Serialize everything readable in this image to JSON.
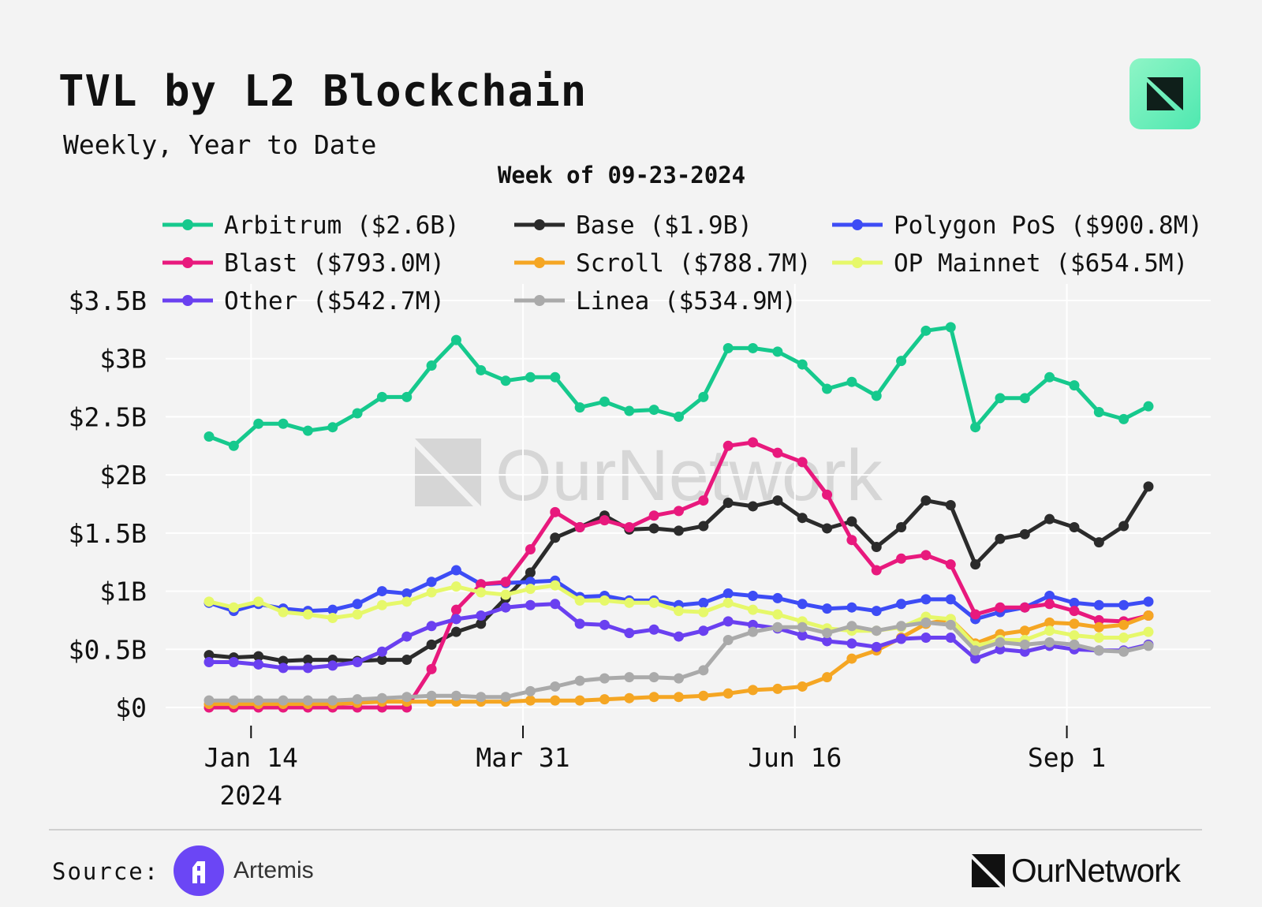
{
  "header": {
    "title": "TVL by L2 Blockchain",
    "subtitle": "Weekly, Year to Date"
  },
  "footer": {
    "source_label": "Source:",
    "source_name": "Artemis",
    "brand_name": "OurNetwork"
  },
  "colors": {
    "background": "#f3f3f3",
    "grid": "#ffffff",
    "text": "#111111"
  },
  "chart_data": {
    "type": "line",
    "title": "Week of 09-23-2024",
    "xlabel": "",
    "ylabel": "",
    "ylim": [
      0,
      3.5
    ],
    "yticks": [
      0,
      0.5,
      1,
      1.5,
      2,
      2.5,
      3,
      3.5
    ],
    "ytick_labels": [
      "$0",
      "$0.5B",
      "$1B",
      "$1.5B",
      "$2B",
      "$2.5B",
      "$3B",
      "$3.5B"
    ],
    "xticks": [
      1.7,
      12.7,
      23.7,
      34.7
    ],
    "xtick_labels": [
      "Jan 14",
      "Mar 31",
      "Jun 16",
      "Sep 1"
    ],
    "xtick_year": "2024",
    "watermark": "OurNetwork",
    "legend_position": "top",
    "x": [
      0,
      1,
      2,
      3,
      4,
      5,
      6,
      7,
      8,
      9,
      10,
      11,
      12,
      13,
      14,
      15,
      16,
      17,
      18,
      19,
      20,
      21,
      22,
      23,
      24,
      25,
      26,
      27,
      28,
      29,
      30,
      31,
      32,
      33,
      34,
      35,
      36,
      37,
      38
    ],
    "series": [
      {
        "name": "Arbitrum",
        "legend": "Arbitrum ($2.6B)",
        "color": "#16c98d",
        "values": [
          2.33,
          2.25,
          2.44,
          2.44,
          2.38,
          2.41,
          2.53,
          2.67,
          2.67,
          2.94,
          3.16,
          2.9,
          2.81,
          2.84,
          2.84,
          2.58,
          2.63,
          2.55,
          2.56,
          2.5,
          2.67,
          3.09,
          3.09,
          3.06,
          2.95,
          2.74,
          2.8,
          2.68,
          2.98,
          3.24,
          3.27,
          2.41,
          2.66,
          2.66,
          2.84,
          2.77,
          2.54,
          2.48,
          2.59
        ]
      },
      {
        "name": "Base",
        "legend": "Base ($1.9B)",
        "color": "#2b2b2b",
        "values": [
          0.45,
          0.43,
          0.44,
          0.4,
          0.41,
          0.41,
          0.4,
          0.41,
          0.41,
          0.54,
          0.65,
          0.72,
          0.94,
          1.16,
          1.46,
          1.55,
          1.65,
          1.53,
          1.54,
          1.52,
          1.56,
          1.76,
          1.73,
          1.78,
          1.63,
          1.54,
          1.6,
          1.38,
          1.55,
          1.78,
          1.74,
          1.23,
          1.45,
          1.49,
          1.62,
          1.55,
          1.42,
          1.56,
          1.9
        ]
      },
      {
        "name": "Polygon PoS",
        "legend": "Polygon PoS ($900.8M)",
        "color": "#3d4cf5",
        "values": [
          0.9,
          0.83,
          0.89,
          0.85,
          0.83,
          0.84,
          0.89,
          1.0,
          0.98,
          1.08,
          1.18,
          1.06,
          1.07,
          1.08,
          1.09,
          0.95,
          0.96,
          0.92,
          0.92,
          0.88,
          0.9,
          0.98,
          0.96,
          0.94,
          0.89,
          0.85,
          0.86,
          0.83,
          0.89,
          0.93,
          0.93,
          0.76,
          0.82,
          0.86,
          0.96,
          0.9,
          0.88,
          0.88,
          0.91
        ]
      },
      {
        "name": "Blast",
        "legend": "Blast ($793.0M)",
        "color": "#e8197d",
        "values": [
          0,
          0,
          0,
          0,
          0,
          0,
          0,
          0,
          0,
          0.33,
          0.84,
          1.06,
          1.08,
          1.36,
          1.68,
          1.55,
          1.61,
          1.55,
          1.65,
          1.69,
          1.78,
          2.25,
          2.28,
          2.19,
          2.11,
          1.83,
          1.44,
          1.18,
          1.28,
          1.31,
          1.23,
          0.8,
          0.86,
          0.86,
          0.89,
          0.83,
          0.75,
          0.74,
          0.79
        ]
      },
      {
        "name": "Scroll",
        "legend": "Scroll ($788.7M)",
        "color": "#f5a623",
        "values": [
          0.03,
          0.03,
          0.03,
          0.03,
          0.03,
          0.03,
          0.04,
          0.05,
          0.05,
          0.05,
          0.05,
          0.05,
          0.05,
          0.06,
          0.06,
          0.06,
          0.07,
          0.08,
          0.09,
          0.09,
          0.1,
          0.12,
          0.15,
          0.16,
          0.18,
          0.26,
          0.42,
          0.49,
          0.6,
          0.72,
          0.76,
          0.55,
          0.63,
          0.66,
          0.73,
          0.72,
          0.69,
          0.71,
          0.79
        ]
      },
      {
        "name": "OP Mainnet",
        "legend": "OP Mainnet ($654.5M)",
        "color": "#e6f86a",
        "values": [
          0.91,
          0.86,
          0.91,
          0.82,
          0.8,
          0.77,
          0.8,
          0.88,
          0.91,
          0.99,
          1.04,
          0.99,
          0.97,
          1.02,
          1.05,
          0.92,
          0.92,
          0.9,
          0.9,
          0.83,
          0.82,
          0.9,
          0.84,
          0.8,
          0.74,
          0.68,
          0.66,
          0.66,
          0.69,
          0.78,
          0.76,
          0.53,
          0.58,
          0.58,
          0.66,
          0.62,
          0.6,
          0.6,
          0.65
        ]
      },
      {
        "name": "Other",
        "legend": "Other ($542.7M)",
        "color": "#6a40f0",
        "values": [
          0.39,
          0.39,
          0.37,
          0.34,
          0.34,
          0.36,
          0.39,
          0.48,
          0.61,
          0.7,
          0.76,
          0.79,
          0.86,
          0.88,
          0.89,
          0.72,
          0.71,
          0.64,
          0.67,
          0.61,
          0.66,
          0.74,
          0.71,
          0.68,
          0.62,
          0.57,
          0.55,
          0.52,
          0.59,
          0.6,
          0.6,
          0.42,
          0.5,
          0.48,
          0.53,
          0.5,
          0.49,
          0.49,
          0.54
        ]
      },
      {
        "name": "Linea",
        "legend": "Linea ($534.9M)",
        "color": "#aaaaaa",
        "values": [
          0.06,
          0.06,
          0.06,
          0.06,
          0.06,
          0.06,
          0.07,
          0.08,
          0.09,
          0.1,
          0.1,
          0.09,
          0.09,
          0.14,
          0.18,
          0.23,
          0.25,
          0.26,
          0.26,
          0.25,
          0.32,
          0.58,
          0.65,
          0.69,
          0.69,
          0.64,
          0.7,
          0.66,
          0.7,
          0.73,
          0.71,
          0.49,
          0.56,
          0.54,
          0.56,
          0.54,
          0.49,
          0.48,
          0.53
        ]
      }
    ]
  }
}
